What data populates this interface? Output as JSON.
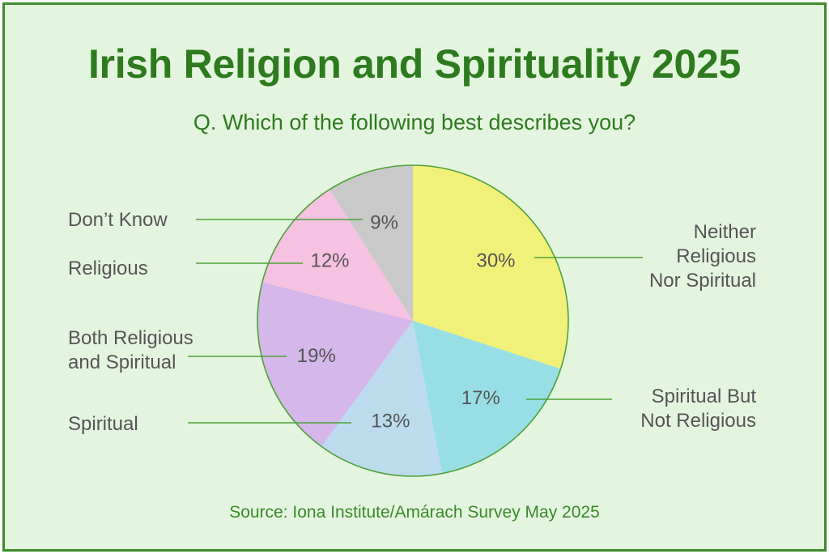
{
  "title": "Irish Religion and Spirituality 2025",
  "question": "Q. Which of the following best describes you?",
  "source": "Source: Iona Institute/Amárach Survey May 2025",
  "colors": {
    "background": "#e4f5df",
    "border": "#3e8b2b",
    "title": "#2e7b1f",
    "leader_line": "#4ea13a"
  },
  "chart_data": {
    "type": "pie",
    "unit": "%",
    "slices": [
      {
        "label": "Neither Religious Nor Spiritual",
        "label_lines": [
          "Neither",
          "Religious",
          "Nor Spiritual"
        ],
        "value": 30,
        "value_label": "30%",
        "color": "#f1f179"
      },
      {
        "label": "Spiritual But Not Religious",
        "label_lines": [
          "Spiritual But",
          "Not Religious"
        ],
        "value": 17,
        "value_label": "17%",
        "color": "#97dfe5"
      },
      {
        "label": "Spiritual",
        "label_lines": [
          "Spiritual"
        ],
        "value": 13,
        "value_label": "13%",
        "color": "#bcdcee"
      },
      {
        "label": "Both Religious and Spiritual",
        "label_lines": [
          "Both Religious",
          "and Spiritual"
        ],
        "value": 19,
        "value_label": "19%",
        "color": "#d5b7e9"
      },
      {
        "label": "Religious",
        "label_lines": [
          "Religious"
        ],
        "value": 12,
        "value_label": "12%",
        "color": "#f6c2e1"
      },
      {
        "label": "Don’t Know",
        "label_lines": [
          "Don’t Know"
        ],
        "value": 9,
        "value_label": "9%",
        "color": "#c9c9c9"
      }
    ]
  }
}
